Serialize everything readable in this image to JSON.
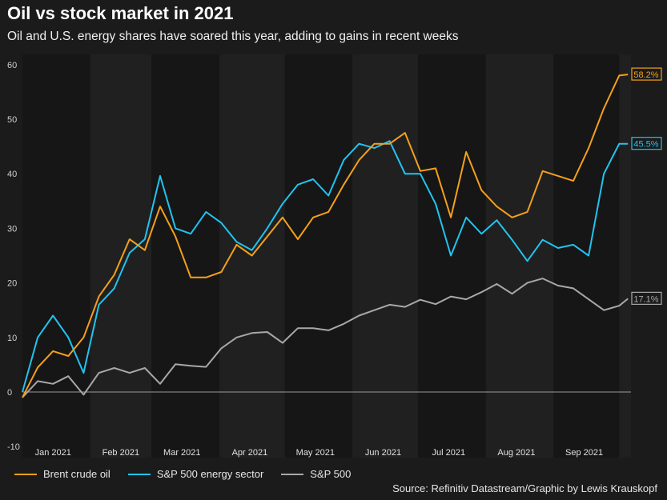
{
  "chart_data": {
    "type": "line",
    "title": "Oil vs stock market in 2021",
    "subtitle": "Oil and U.S. energy shares have soared this year, adding to gains in recent weeks",
    "source": "Source: Refinitiv Datastream/Graphic by Lewis Krauskopf",
    "ylabel": "",
    "xlabel": "",
    "ylim": [
      -10,
      60
    ],
    "yticks": [
      -10,
      0,
      10,
      20,
      30,
      40,
      50,
      60
    ],
    "xtick_labels": [
      "Jan 2021",
      "Feb 2021",
      "Mar 2021",
      "Apr 2021",
      "May 2021",
      "Jun 2021",
      "Jul 2021",
      "Aug 2021",
      "Sep 2021"
    ],
    "grid": false,
    "legend": "bottom",
    "x": [
      "2021-01-01",
      "2021-01-08",
      "2021-01-15",
      "2021-01-22",
      "2021-01-29",
      "2021-02-05",
      "2021-02-12",
      "2021-02-19",
      "2021-02-26",
      "2021-03-05",
      "2021-03-12",
      "2021-03-19",
      "2021-03-26",
      "2021-04-02",
      "2021-04-09",
      "2021-04-16",
      "2021-04-23",
      "2021-04-30",
      "2021-05-07",
      "2021-05-14",
      "2021-05-21",
      "2021-05-28",
      "2021-06-04",
      "2021-06-11",
      "2021-06-18",
      "2021-06-25",
      "2021-07-02",
      "2021-07-09",
      "2021-07-16",
      "2021-07-23",
      "2021-07-30",
      "2021-08-06",
      "2021-08-13",
      "2021-08-20",
      "2021-08-27",
      "2021-09-03",
      "2021-09-10",
      "2021-09-17",
      "2021-09-24",
      "2021-10-01",
      "2021-10-05"
    ],
    "series": [
      {
        "name": "Brent crude oil",
        "color": "#f5a01a",
        "end_label": "58.2%",
        "values": [
          -1,
          4.5,
          7.5,
          6.6,
          10,
          17.5,
          21.5,
          28,
          26,
          34,
          28.5,
          21,
          21,
          22,
          27,
          25,
          28.5,
          32,
          28,
          32,
          33,
          38,
          42.5,
          45.5,
          45.5,
          47.5,
          40.5,
          41,
          32,
          44,
          37,
          34,
          32,
          33,
          40.5,
          39.6,
          38.7,
          44.7,
          52,
          58,
          58.2
        ]
      },
      {
        "name": "S&P 500 energy sector",
        "color": "#21c4f0",
        "end_label": "45.5%",
        "values": [
          0,
          10,
          14,
          10,
          3.5,
          16,
          19,
          25.5,
          28,
          39.6,
          30,
          29,
          33,
          31,
          27.5,
          26,
          30,
          34.5,
          38,
          39,
          36,
          42.5,
          45.5,
          44.7,
          46,
          40,
          40,
          34.5,
          25,
          32,
          29,
          31.5,
          27.9,
          24,
          27.9,
          26.4,
          27,
          25,
          40,
          45.5,
          45.5
        ]
      },
      {
        "name": "S&P 500",
        "color": "#a8a8a8",
        "end_label": "17.1%",
        "values": [
          -1,
          2,
          1.5,
          2.9,
          -0.5,
          3.5,
          4.4,
          3.5,
          4.4,
          1.5,
          5.1,
          4.8,
          4.6,
          8,
          10,
          10.8,
          11,
          9,
          11.7,
          11.7,
          11.3,
          12.5,
          14,
          15,
          16,
          15.6,
          16.9,
          16.1,
          17.5,
          17,
          18.3,
          19.8,
          18,
          20,
          20.8,
          19.5,
          19,
          17,
          15,
          15.8,
          17.1
        ]
      }
    ]
  }
}
